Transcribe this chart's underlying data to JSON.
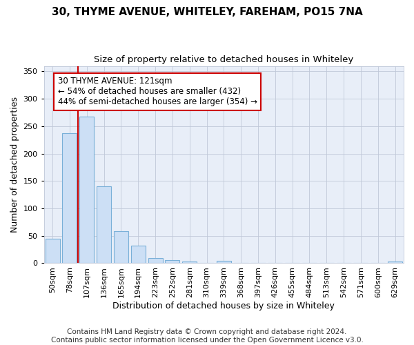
{
  "title": "30, THYME AVENUE, WHITELEY, FAREHAM, PO15 7NA",
  "subtitle": "Size of property relative to detached houses in Whiteley",
  "xlabel": "Distribution of detached houses by size in Whiteley",
  "ylabel": "Number of detached properties",
  "categories": [
    "50sqm",
    "78sqm",
    "107sqm",
    "136sqm",
    "165sqm",
    "194sqm",
    "223sqm",
    "252sqm",
    "281sqm",
    "310sqm",
    "339sqm",
    "368sqm",
    "397sqm",
    "426sqm",
    "455sqm",
    "484sqm",
    "513sqm",
    "542sqm",
    "571sqm",
    "600sqm",
    "629sqm"
  ],
  "values": [
    45,
    237,
    268,
    140,
    59,
    32,
    10,
    6,
    3,
    0,
    4,
    0,
    0,
    0,
    0,
    0,
    0,
    0,
    0,
    0,
    3
  ],
  "bar_color": "#ccdff5",
  "bar_edgecolor": "#7ab0d8",
  "vline_color": "#cc0000",
  "vline_x": 1.5,
  "annotation_text": "30 THYME AVENUE: 121sqm\n← 54% of detached houses are smaller (432)\n44% of semi-detached houses are larger (354) →",
  "annotation_box_facecolor": "#ffffff",
  "annotation_box_edgecolor": "#cc0000",
  "ylim": [
    0,
    360
  ],
  "yticks": [
    0,
    50,
    100,
    150,
    200,
    250,
    300,
    350
  ],
  "fig_bg_color": "#ffffff",
  "plot_bg_color": "#e8eef8",
  "footer": "Contains HM Land Registry data © Crown copyright and database right 2024.\nContains public sector information licensed under the Open Government Licence v3.0.",
  "title_fontsize": 11,
  "subtitle_fontsize": 9.5,
  "axis_label_fontsize": 9,
  "tick_fontsize": 8,
  "annotation_fontsize": 8.5,
  "footer_fontsize": 7.5
}
